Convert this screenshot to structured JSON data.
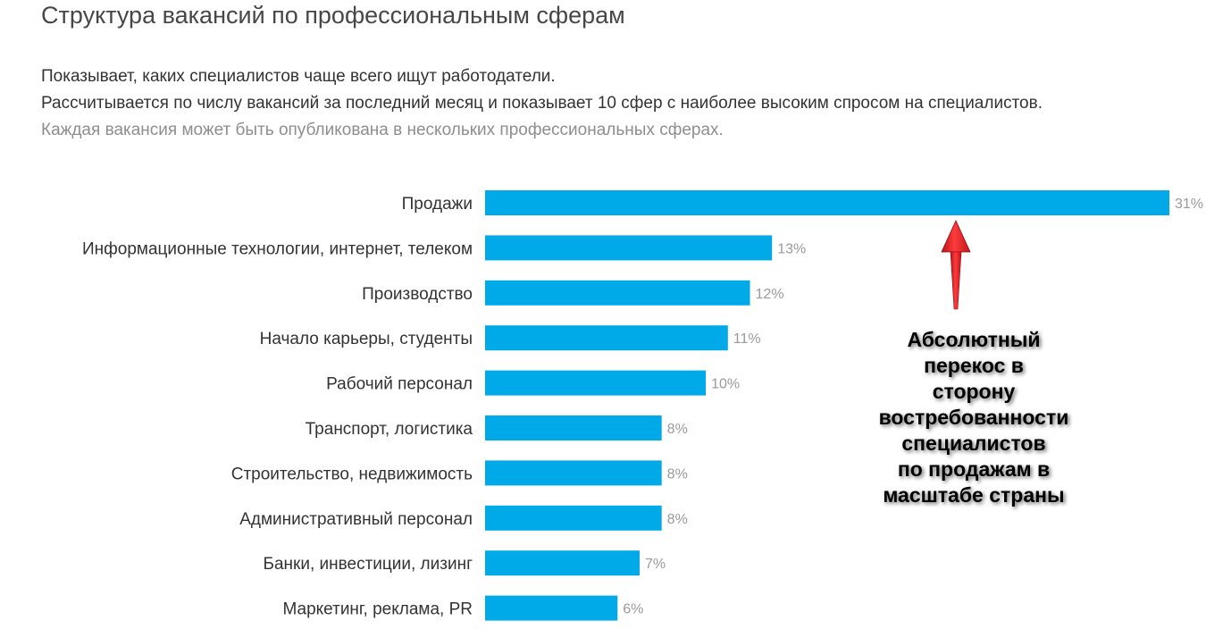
{
  "header": {
    "title": "Структура вакансий по профессиональным сферам",
    "description_lines": [
      "Показывает, каких специалистов чаще всего ищут работодатели.",
      "Рассчитывается по числу вакансий за последний месяц и показывает 10 сфер с наиболее высоким спросом на специалистов.",
      "Каждая вакансия может быть опубликована в нескольких профессиональных сферах."
    ]
  },
  "chart_data": {
    "type": "bar",
    "orientation": "horizontal",
    "categories": [
      "Продажи",
      "Информационные технологии, интернет, телеком",
      "Производство",
      "Начало карьеры, студенты",
      "Рабочий персонал",
      "Транспорт, логистика",
      "Строительство, недвижимость",
      "Административный персонал",
      "Банки, инвестиции, лизинг",
      "Маркетинг, реклама, PR"
    ],
    "values": [
      31,
      13,
      12,
      11,
      10,
      8,
      8,
      8,
      7,
      6
    ],
    "value_labels": [
      "31%",
      "13%",
      "12%",
      "11%",
      "10%",
      "8%",
      "8%",
      "8%",
      "7%",
      "6%"
    ],
    "unit": "%",
    "bar_color": "#00aae9",
    "value_label_color": "#9a9a9a",
    "grid": false,
    "legend": "none"
  },
  "annotation": {
    "text_lines": [
      "Абсолютный",
      "перекос в",
      "сторону",
      "востребованности",
      "специалистов",
      "по продажам в",
      "масштабе страны"
    ],
    "arrow_color": "#e8262a",
    "arrow_points_to": "Продажи"
  }
}
